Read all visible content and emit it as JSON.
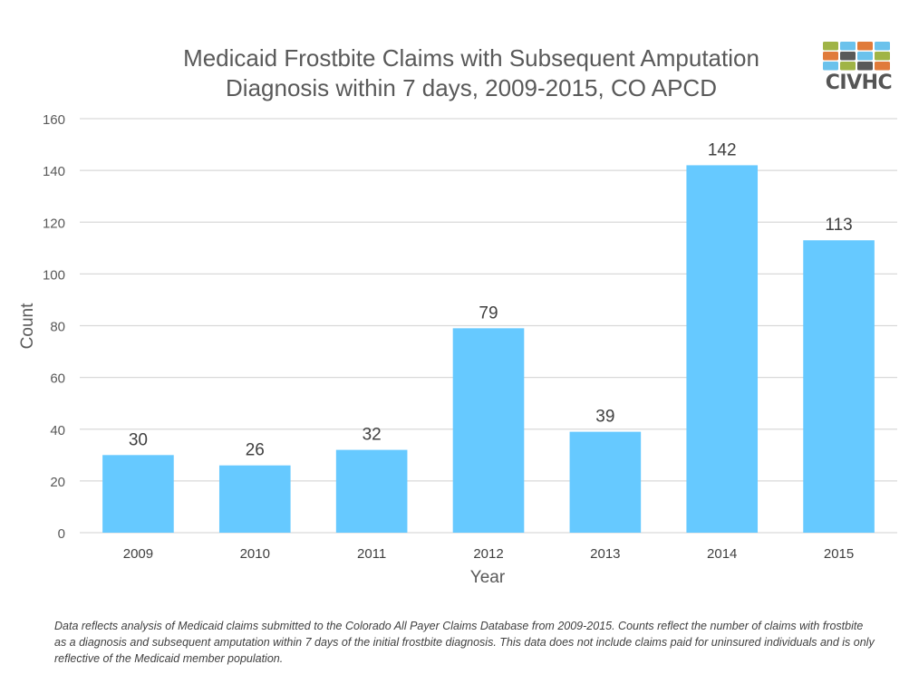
{
  "logo": {
    "text": "CIVHC",
    "tile_colors": [
      "#a0b446",
      "#6bc2ec",
      "#e07b3a",
      "#6bc2ec",
      "#e07b3a",
      "#595959",
      "#6bc2ec",
      "#a0b446",
      "#6bc2ec",
      "#a0b446",
      "#595959",
      "#e07b3a"
    ]
  },
  "chart_data": {
    "type": "bar",
    "title": "Medicaid Frostbite Claims with Subsequent Amputation Diagnosis within 7 days, 2009-2015, CO APCD",
    "title_lines": [
      "Medicaid Frostbite Claims with Subsequent Amputation",
      "Diagnosis within 7 days, 2009-2015, CO APCD"
    ],
    "xlabel": "Year",
    "ylabel": "Count",
    "categories": [
      "2009",
      "2010",
      "2011",
      "2012",
      "2013",
      "2014",
      "2015"
    ],
    "values": [
      30,
      26,
      32,
      79,
      39,
      142,
      113
    ],
    "data_labels": [
      "30",
      "26",
      "32",
      "79",
      "39",
      "142",
      "113"
    ],
    "ylim": [
      0,
      160
    ],
    "yticks": [
      0,
      20,
      40,
      60,
      80,
      100,
      120,
      140,
      160
    ],
    "grid": true,
    "legend": "none",
    "bar_color": "#66c9ff"
  },
  "footnote": "Data reflects analysis of Medicaid claims submitted to the Colorado All Payer Claims Database from 2009-2015. Counts reflect the number of claims with frostbite as a diagnosis and subsequent amputation within 7 days of the initial frostbite diagnosis. This data does not include claims paid for uninsured individuals and is only reflective of the Medicaid member population."
}
